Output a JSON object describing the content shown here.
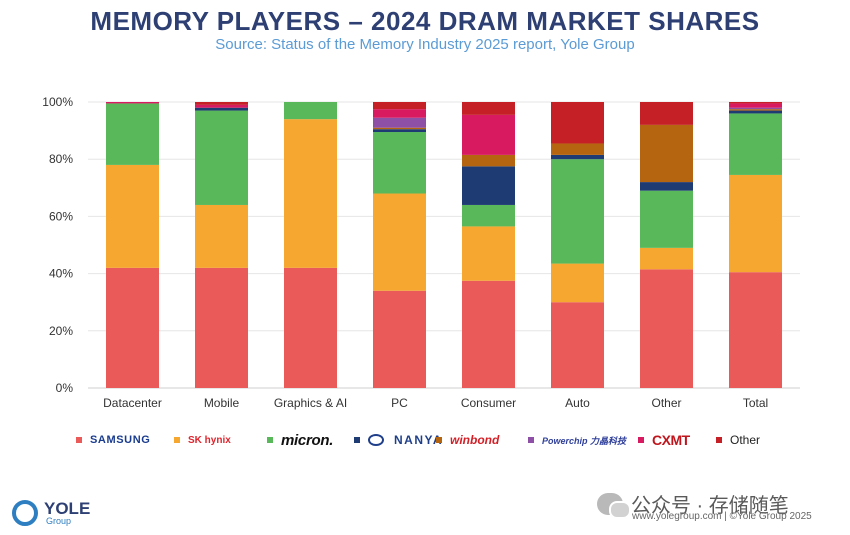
{
  "header": {
    "title": "MEMORY PLAYERS – 2024 DRAM MARKET SHARES",
    "subtitle": "Source: Status of the Memory Industry 2025 report, Yole Group"
  },
  "chart_data": {
    "type": "bar",
    "stacked": true,
    "title": "MEMORY PLAYERS – 2024 DRAM MARKET SHARES",
    "subtitle": "Source: Status of the Memory Industry 2025 report, Yole Group",
    "xlabel": "",
    "ylabel": "",
    "ylim": [
      0,
      100
    ],
    "y_ticks": [
      "0%",
      "20%",
      "40%",
      "60%",
      "80%",
      "100%"
    ],
    "y_tick_values": [
      0,
      20,
      40,
      60,
      80,
      100
    ],
    "grid": true,
    "legend_position": "bottom",
    "categories": [
      "Datacenter",
      "Mobile",
      "Graphics & AI",
      "PC",
      "Consumer",
      "Auto",
      "Other",
      "Total"
    ],
    "series": [
      {
        "name": "SAMSUNG",
        "color": "#ea5a58",
        "values": [
          42,
          42,
          42,
          34,
          37.5,
          30,
          41.5,
          40.5
        ]
      },
      {
        "name": "SK hynix",
        "color": "#f5a730",
        "values": [
          36,
          22,
          52,
          34,
          19,
          13.5,
          7.5,
          34
        ]
      },
      {
        "name": "micron",
        "color": "#58b85a",
        "values": [
          21.5,
          33,
          6,
          21.5,
          7.5,
          36.5,
          20,
          21.5
        ]
      },
      {
        "name": "NANYA",
        "color": "#1f3b73",
        "values": [
          0,
          1,
          0,
          1,
          13.5,
          1.5,
          3,
          1
        ]
      },
      {
        "name": "winbond",
        "color": "#b5650f",
        "values": [
          0,
          0,
          0,
          0.5,
          4,
          4,
          20,
          0.5
        ]
      },
      {
        "name": "Powerchip",
        "color": "#8e4fa6",
        "values": [
          0,
          0,
          0,
          3.5,
          0,
          0,
          0,
          0.5
        ]
      },
      {
        "name": "CXMT",
        "color": "#d81b60",
        "values": [
          0.5,
          1,
          0,
          3,
          14,
          0,
          0,
          1.5
        ]
      },
      {
        "name": "Other",
        "color": "#c42026",
        "values": [
          0,
          1,
          0,
          2.5,
          4.5,
          14.5,
          8,
          0.5
        ]
      }
    ]
  },
  "legend": [
    {
      "label": "SAMSUNG",
      "color": "#ea5a58"
    },
    {
      "label": "SK hynix",
      "color": "#f5a730"
    },
    {
      "label": "micron.",
      "color": "#58b85a"
    },
    {
      "label": "NANYA",
      "color": "#1f3b73"
    },
    {
      "label": "winbond",
      "color": "#b5650f"
    },
    {
      "label": "Powerchip 力晶科技",
      "color": "#8e4fa6"
    },
    {
      "label": "CXMT",
      "color": "#d81b60"
    },
    {
      "label": "Other",
      "color": "#c42026"
    }
  ],
  "branding": {
    "logo_main": "YOLE",
    "logo_sub": "Group",
    "watermark": "公众号 · 存储随笔",
    "footer": "www.yolegroup.com | ©Yole Group 2025"
  }
}
